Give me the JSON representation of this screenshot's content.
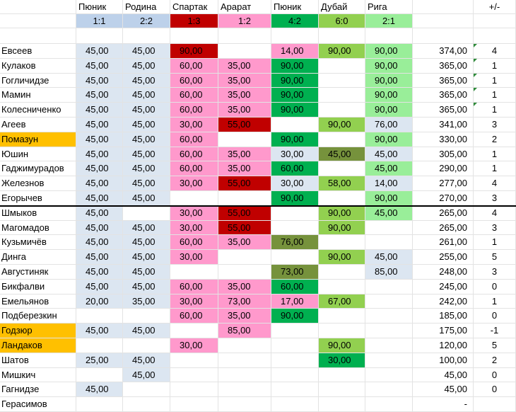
{
  "header": {
    "teams": [
      "Пюник",
      "Родина",
      "Спартак",
      "Арарат",
      "Пюник",
      "Дубай",
      "Рига"
    ],
    "scores": [
      "1:1",
      "2:2",
      "1:3",
      "1:2",
      "4:2",
      "6:0",
      "2:1"
    ],
    "score_colors": [
      "#bdd1ea",
      "#bdd1ea",
      "#c00000",
      "#ff99cc",
      "#00b050",
      "#92d050",
      "#99ee99"
    ],
    "plus_minus": "+/-"
  },
  "rows": [
    {
      "name": "Евсеев",
      "c": [
        "45,00",
        "45,00",
        "90,00",
        "",
        "14,00",
        "90,00",
        "90,00"
      ],
      "total": "374,00",
      "diff": "4"
    },
    {
      "name": "Кулаков",
      "c": [
        "45,00",
        "45,00",
        "60,00",
        "35,00",
        "90,00",
        "",
        "90,00"
      ],
      "total": "365,00",
      "diff": "1"
    },
    {
      "name": "Гогличидзе",
      "c": [
        "45,00",
        "45,00",
        "60,00",
        "35,00",
        "90,00",
        "",
        "90,00"
      ],
      "total": "365,00",
      "diff": "1"
    },
    {
      "name": "Мамин",
      "c": [
        "45,00",
        "45,00",
        "60,00",
        "35,00",
        "90,00",
        "",
        "90,00"
      ],
      "total": "365,00",
      "diff": "1"
    },
    {
      "name": "Колесниченко",
      "c": [
        "45,00",
        "45,00",
        "60,00",
        "35,00",
        "90,00",
        "",
        "90,00"
      ],
      "total": "365,00",
      "diff": "1"
    },
    {
      "name": "Агеев",
      "c": [
        "45,00",
        "45,00",
        "30,00",
        "55,00",
        "",
        "90,00",
        "76,00"
      ],
      "total": "341,00",
      "diff": "3"
    },
    {
      "name": "Помазун",
      "c": [
        "45,00",
        "45,00",
        "60,00",
        "",
        "90,00",
        "",
        "90,00"
      ],
      "total": "330,00",
      "diff": "2"
    },
    {
      "name": "Юшин",
      "c": [
        "45,00",
        "45,00",
        "60,00",
        "35,00",
        "30,00",
        "45,00",
        "45,00"
      ],
      "total": "305,00",
      "diff": "1"
    },
    {
      "name": "Гаджимурадов",
      "c": [
        "45,00",
        "45,00",
        "60,00",
        "35,00",
        "60,00",
        "",
        "45,00"
      ],
      "total": "290,00",
      "diff": "1"
    },
    {
      "name": "Железнов",
      "c": [
        "45,00",
        "45,00",
        "30,00",
        "55,00",
        "30,00",
        "58,00",
        "14,00"
      ],
      "total": "277,00",
      "diff": "4"
    },
    {
      "name": "Егорычев",
      "c": [
        "45,00",
        "45,00",
        "",
        "",
        "90,00",
        "",
        "90,00"
      ],
      "total": "270,00",
      "diff": "3"
    },
    {
      "name": "Шмыков",
      "c": [
        "45,00",
        "",
        "30,00",
        "55,00",
        "",
        "90,00",
        "45,00"
      ],
      "total": "265,00",
      "diff": "4"
    },
    {
      "name": "Магомадов",
      "c": [
        "45,00",
        "45,00",
        "30,00",
        "55,00",
        "",
        "90,00",
        ""
      ],
      "total": "265,00",
      "diff": "3"
    },
    {
      "name": "Кузьмичёв",
      "c": [
        "45,00",
        "45,00",
        "60,00",
        "35,00",
        "76,00",
        "",
        ""
      ],
      "total": "261,00",
      "diff": "1"
    },
    {
      "name": "Динга",
      "c": [
        "45,00",
        "45,00",
        "30,00",
        "",
        "",
        "90,00",
        "45,00"
      ],
      "total": "255,00",
      "diff": "5"
    },
    {
      "name": "Августиняк",
      "c": [
        "45,00",
        "45,00",
        "",
        "",
        "73,00",
        "",
        "85,00"
      ],
      "total": "248,00",
      "diff": "3"
    },
    {
      "name": "Бикфалви",
      "c": [
        "45,00",
        "45,00",
        "60,00",
        "35,00",
        "60,00",
        "",
        ""
      ],
      "total": "245,00",
      "diff": "0"
    },
    {
      "name": "Емельянов",
      "c": [
        "20,00",
        "35,00",
        "30,00",
        "73,00",
        "17,00",
        "67,00",
        ""
      ],
      "total": "242,00",
      "diff": "1"
    },
    {
      "name": "Подберезкин",
      "c": [
        "",
        "",
        "60,00",
        "35,00",
        "90,00",
        "",
        ""
      ],
      "total": "185,00",
      "diff": "0"
    },
    {
      "name": "Годзюр",
      "c": [
        "45,00",
        "45,00",
        "",
        "85,00",
        "",
        "",
        ""
      ],
      "total": "175,00",
      "diff": "-1"
    },
    {
      "name": "Ландаков",
      "c": [
        "",
        "",
        "30,00",
        "",
        "",
        "90,00",
        ""
      ],
      "total": "120,00",
      "diff": "5"
    },
    {
      "name": "Шатов",
      "c": [
        "25,00",
        "45,00",
        "",
        "",
        "",
        "30,00",
        ""
      ],
      "total": "100,00",
      "diff": "2"
    },
    {
      "name": "Мишкич",
      "c": [
        "",
        "45,00",
        "",
        "",
        "",
        "",
        ""
      ],
      "total": "45,00",
      "diff": "0"
    },
    {
      "name": "Гагнидзе",
      "c": [
        "45,00",
        "",
        "",
        "",
        "",
        "",
        ""
      ],
      "total": "45,00",
      "diff": "0"
    },
    {
      "name": "Герасимов",
      "c": [
        "",
        "",
        "",
        "",
        "",
        "",
        ""
      ],
      "total": "-",
      "diff": ""
    }
  ],
  "colors": {
    "blue": "#dce6f1",
    "pink": "#ff99cc",
    "dark_red": "#c00000",
    "green": "#00b050",
    "olive": "#76923c",
    "light_green": "#92d050",
    "pale_green": "#99ee99",
    "orange": "#ffc000"
  },
  "highlighted_names": [
    "Помазун",
    "Годзюр",
    "Ландаков"
  ],
  "cell_fills": [
    [
      "blue",
      "blue",
      "dark_red",
      "",
      "pink",
      "light_green",
      "pale_green"
    ],
    [
      "blue",
      "blue",
      "pink",
      "pink",
      "green",
      "",
      "pale_green"
    ],
    [
      "blue",
      "blue",
      "pink",
      "pink",
      "green",
      "",
      "pale_green"
    ],
    [
      "blue",
      "blue",
      "pink",
      "pink",
      "green",
      "",
      "pale_green"
    ],
    [
      "blue",
      "blue",
      "pink",
      "pink",
      "green",
      "",
      "pale_green"
    ],
    [
      "blue",
      "blue",
      "pink",
      "dark_red",
      "",
      "light_green",
      "blue"
    ],
    [
      "blue",
      "blue",
      "pink",
      "",
      "green",
      "",
      "pale_green"
    ],
    [
      "blue",
      "blue",
      "pink",
      "pink",
      "blue",
      "olive",
      "blue"
    ],
    [
      "blue",
      "blue",
      "pink",
      "pink",
      "green",
      "",
      "pale_green"
    ],
    [
      "blue",
      "blue",
      "pink",
      "dark_red",
      "blue",
      "light_green",
      "blue"
    ],
    [
      "blue",
      "blue",
      "",
      "",
      "green",
      "",
      "pale_green"
    ],
    [
      "blue",
      "",
      "pink",
      "dark_red",
      "",
      "light_green",
      "pale_green"
    ],
    [
      "blue",
      "blue",
      "pink",
      "dark_red",
      "",
      "light_green",
      ""
    ],
    [
      "blue",
      "blue",
      "pink",
      "pink",
      "olive",
      "",
      ""
    ],
    [
      "blue",
      "blue",
      "pink",
      "",
      "",
      "light_green",
      "blue"
    ],
    [
      "blue",
      "blue",
      "",
      "",
      "olive",
      "",
      "blue"
    ],
    [
      "blue",
      "blue",
      "pink",
      "pink",
      "green",
      "",
      ""
    ],
    [
      "blue",
      "blue",
      "pink",
      "pink",
      "pink",
      "light_green",
      ""
    ],
    [
      "",
      "",
      "pink",
      "pink",
      "green",
      "",
      ""
    ],
    [
      "blue",
      "blue",
      "",
      "pink",
      "",
      "",
      ""
    ],
    [
      "",
      "",
      "pink",
      "",
      "",
      "light_green",
      ""
    ],
    [
      "blue",
      "blue",
      "",
      "",
      "",
      "green",
      ""
    ],
    [
      "",
      "blue",
      "",
      "",
      "",
      "",
      ""
    ],
    [
      "blue",
      "",
      "",
      "",
      "",
      "",
      ""
    ],
    [
      "",
      "",
      "",
      "",
      "",
      "",
      ""
    ]
  ],
  "flagged_rows": [
    0,
    1,
    2,
    3,
    4
  ]
}
